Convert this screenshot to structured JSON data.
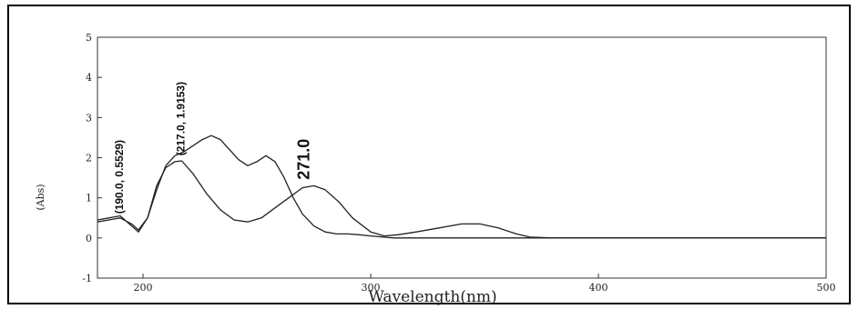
{
  "chart_data": {
    "type": "line",
    "xlabel": "Wavelength(nm)",
    "ylabel": "(Abs)",
    "xlim": [
      180,
      500
    ],
    "ylim": [
      -1,
      5
    ],
    "x_ticks": [
      200,
      300,
      400,
      500
    ],
    "y_ticks": [
      -1,
      0,
      1,
      2,
      3,
      4,
      5
    ],
    "x_tick_labels": [
      "200",
      "300",
      "400",
      "500"
    ],
    "y_tick_labels": [
      "-1",
      "0",
      "1",
      "2",
      "3",
      "4",
      "5"
    ],
    "grid": false,
    "series": [
      {
        "x": [
          180,
          185,
          190,
          195,
          198,
          202,
          206,
          210,
          214,
          218,
          222,
          226,
          230,
          234,
          238,
          242,
          246,
          250,
          254,
          258,
          262,
          266,
          270,
          275,
          280,
          285,
          290,
          295,
          300,
          310,
          320,
          340,
          360,
          380,
          400,
          450,
          500
        ],
        "y": [
          0.45,
          0.5,
          0.55,
          0.3,
          0.15,
          0.5,
          1.2,
          1.8,
          2.05,
          2.15,
          2.3,
          2.45,
          2.55,
          2.45,
          2.2,
          1.95,
          1.8,
          1.9,
          2.05,
          1.9,
          1.5,
          1.0,
          0.6,
          0.3,
          0.15,
          0.1,
          0.1,
          0.08,
          0.05,
          0.0,
          0.0,
          0.0,
          0.0,
          0.0,
          0.0,
          0.0,
          0.0
        ]
      },
      {
        "x": [
          180,
          185,
          190,
          195,
          198,
          202,
          206,
          210,
          214,
          217,
          222,
          228,
          234,
          240,
          246,
          252,
          258,
          264,
          270,
          275,
          280,
          286,
          292,
          300,
          306,
          312,
          320,
          330,
          340,
          348,
          356,
          364,
          370,
          380,
          400,
          450,
          500
        ],
        "y": [
          0.4,
          0.45,
          0.5,
          0.35,
          0.2,
          0.5,
          1.3,
          1.75,
          1.9,
          1.92,
          1.6,
          1.1,
          0.7,
          0.45,
          0.4,
          0.5,
          0.75,
          1.0,
          1.25,
          1.3,
          1.2,
          0.9,
          0.5,
          0.15,
          0.05,
          0.08,
          0.15,
          0.25,
          0.35,
          0.35,
          0.25,
          0.1,
          0.02,
          0.0,
          0.0,
          0.0,
          0.0
        ]
      }
    ],
    "annotations": [
      {
        "text": "(190.0, 0.5529)",
        "x": 190,
        "y": 0.6,
        "size": 12,
        "rotate": -90
      },
      {
        "text": "(217.0, 1.9153)",
        "x": 217,
        "y": 2.05,
        "size": 12,
        "rotate": -90
      },
      {
        "text": "271.0",
        "x": 271,
        "y": 1.45,
        "size": 18,
        "rotate": -90
      }
    ]
  }
}
